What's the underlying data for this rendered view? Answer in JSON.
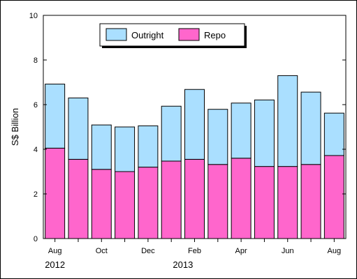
{
  "chart_data": {
    "type": "bar",
    "stacked": true,
    "categories": [
      "Aug 2012",
      "Sep 2012",
      "Oct 2012",
      "Nov 2012",
      "Dec 2012",
      "Jan 2013",
      "Feb 2013",
      "Mar 2013",
      "Apr 2013",
      "May 2013",
      "Jun 2013",
      "Jul 2013",
      "Aug 2013"
    ],
    "x_tick_labels": [
      "Aug",
      "",
      "Oct",
      "",
      "Dec",
      "",
      "Feb",
      "",
      "Apr",
      "",
      "Jun",
      "",
      "Aug"
    ],
    "year_labels": [
      {
        "text": "2012",
        "at_category": 0
      },
      {
        "text": "2013",
        "at_category": 5.5
      }
    ],
    "series": [
      {
        "name": "Repo",
        "color": "#ff66cc",
        "values": [
          4.05,
          3.55,
          3.1,
          3.0,
          3.2,
          3.47,
          3.55,
          3.32,
          3.6,
          3.23,
          3.23,
          3.32,
          3.72
        ]
      },
      {
        "name": "Outright",
        "color": "#aadfff",
        "values": [
          2.87,
          2.75,
          1.99,
          2.0,
          1.85,
          2.46,
          3.13,
          2.47,
          2.47,
          2.98,
          4.07,
          3.24,
          1.9
        ]
      }
    ],
    "legend_order": [
      "Outright",
      "Repo"
    ],
    "legend_position": "top-center",
    "ylabel": "S$ Billion",
    "xlabel": "",
    "ylim": [
      0,
      10
    ],
    "yticks": [
      0,
      2,
      4,
      6,
      8,
      10
    ],
    "grid": false
  }
}
